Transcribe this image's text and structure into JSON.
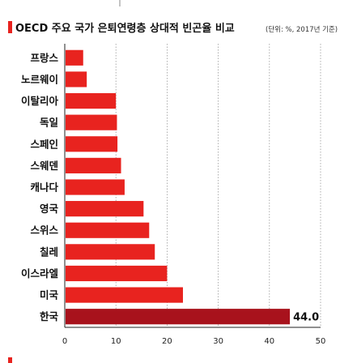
{
  "chart_data": {
    "type": "bar",
    "orientation": "horizontal",
    "title": "OECD 주요 국가 은퇴연령층 상대적 빈곤율 비교",
    "subtitle": "(단위: %, 2017년 기준)",
    "categories": [
      "프랑스",
      "노르웨이",
      "이탈리아",
      "독일",
      "스페인",
      "스웨덴",
      "캐나다",
      "영국",
      "스위스",
      "칠레",
      "이스라엘",
      "미국",
      "한국"
    ],
    "values": [
      3.6,
      4.3,
      10.0,
      10.2,
      10.3,
      11.0,
      11.7,
      15.4,
      16.5,
      17.6,
      20.0,
      23.1,
      44.0
    ],
    "highlight_index": 12,
    "data_labels": [
      {
        "index": 12,
        "text": "44.0"
      }
    ],
    "xlim": [
      0,
      50
    ],
    "xticks": [
      "0",
      "10",
      "20",
      "30",
      "40",
      "50"
    ],
    "grid": "vertical-dashed",
    "bar_color": "#e8231f",
    "highlight_color": "#a8121c",
    "title_marker_color": "#e8231f",
    "footer_marker_color": "#e8231f"
  }
}
